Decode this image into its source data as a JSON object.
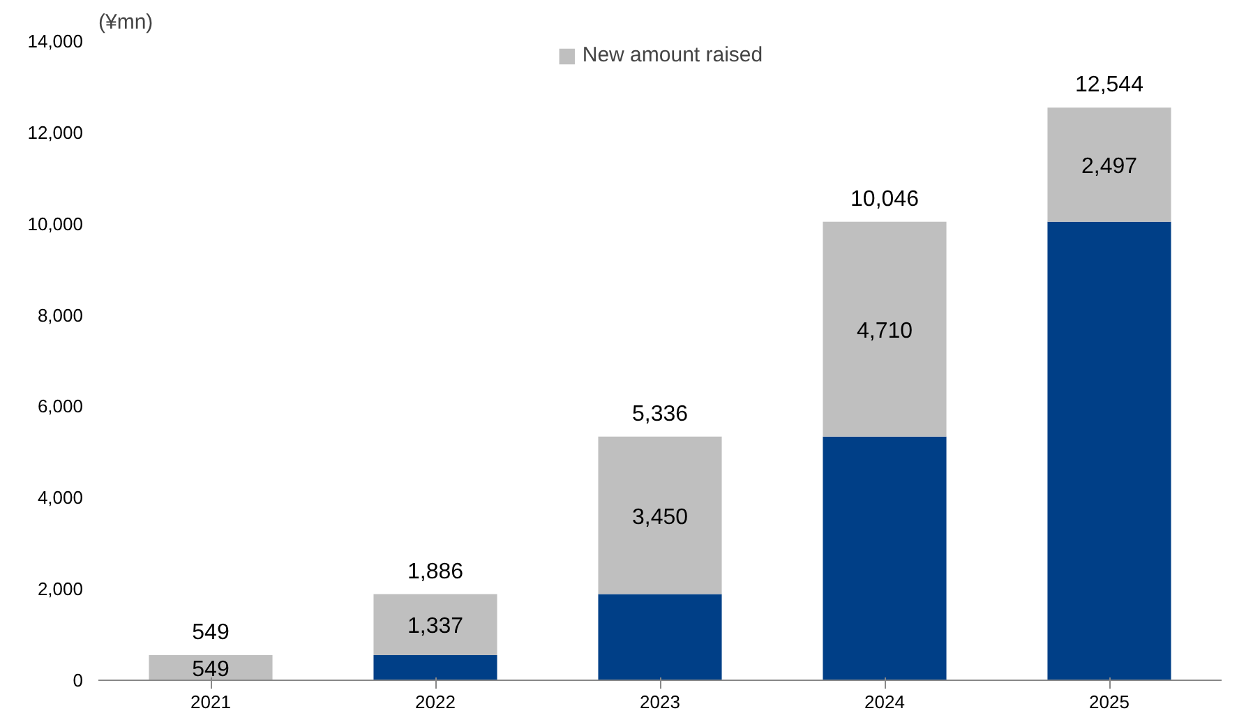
{
  "chart_data": {
    "type": "bar",
    "stacked": true,
    "ylabel": "(¥mn)",
    "categories": [
      "2021",
      "2022",
      "2023",
      "2024",
      "2025"
    ],
    "series": [
      {
        "color": "#003f87",
        "values": [
          0,
          549,
          1886,
          5336,
          10046
        ]
      },
      {
        "name": "New amount raised",
        "color": "#bfbfbf",
        "values": [
          549,
          1337,
          3450,
          4710,
          2497
        ],
        "value_labels": [
          "549",
          "1,337",
          "3,450",
          "4,710",
          "2,497"
        ]
      }
    ],
    "totals": [
      "549",
      "1,886",
      "5,336",
      "10,046",
      "12,544"
    ],
    "ylim": [
      0,
      14000
    ],
    "yticks": [
      {
        "value": 0,
        "label": "0"
      },
      {
        "value": 2000,
        "label": "2,000"
      },
      {
        "value": 4000,
        "label": "4,000"
      },
      {
        "value": 6000,
        "label": "6,000"
      },
      {
        "value": 8000,
        "label": "8,000"
      },
      {
        "value": 10000,
        "label": "10,000"
      },
      {
        "value": 12000,
        "label": "12,000"
      },
      {
        "value": 14000,
        "label": "14,000"
      }
    ],
    "grid": false,
    "legend": "top"
  }
}
